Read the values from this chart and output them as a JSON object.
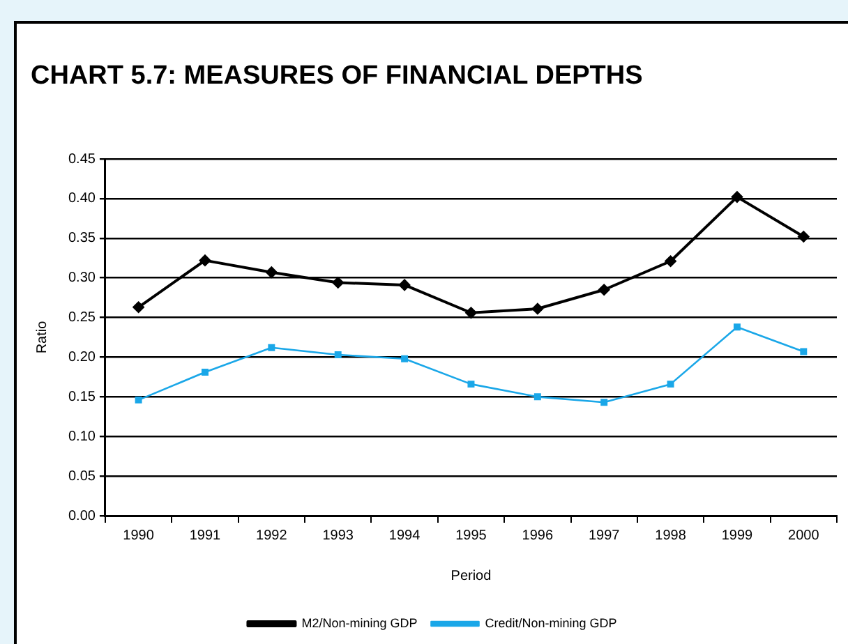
{
  "chart_data": {
    "type": "line",
    "title": "CHART 5.7: MEASURES OF FINANCIAL DEPTHS",
    "xlabel": "Period",
    "ylabel": "Ratio",
    "categories": [
      "1990",
      "1991",
      "1992",
      "1993",
      "1994",
      "1995",
      "1996",
      "1997",
      "1998",
      "1999",
      "2000"
    ],
    "series": [
      {
        "name": "M2/Non-mining GDP",
        "color": "#000000",
        "marker": "diamond",
        "values": [
          0.263,
          0.322,
          0.307,
          0.294,
          0.291,
          0.256,
          0.261,
          0.285,
          0.321,
          0.402,
          0.352
        ]
      },
      {
        "name": "Credit/Non-mining GDP",
        "color": "#1aa7e8",
        "marker": "square",
        "values": [
          0.146,
          0.181,
          0.212,
          0.203,
          0.198,
          0.166,
          0.15,
          0.143,
          0.166,
          0.238,
          0.207
        ]
      }
    ],
    "ylim": [
      0,
      0.45
    ],
    "yticks": [
      {
        "value": 0,
        "label": "0.00"
      },
      {
        "value": 0.05,
        "label": "0.05"
      },
      {
        "value": 0.1,
        "label": "0.10"
      },
      {
        "value": 0.15,
        "label": "0.15"
      },
      {
        "value": 0.2,
        "label": "0.20"
      },
      {
        "value": 0.25,
        "label": "0.25"
      },
      {
        "value": 0.3,
        "label": "0.30"
      },
      {
        "value": 0.35,
        "label": "0.35"
      },
      {
        "value": 0.4,
        "label": "0.40"
      },
      {
        "value": 0.45,
        "label": "0.45"
      }
    ],
    "grid": "y",
    "line_style": "solid",
    "legend": "bottom"
  }
}
